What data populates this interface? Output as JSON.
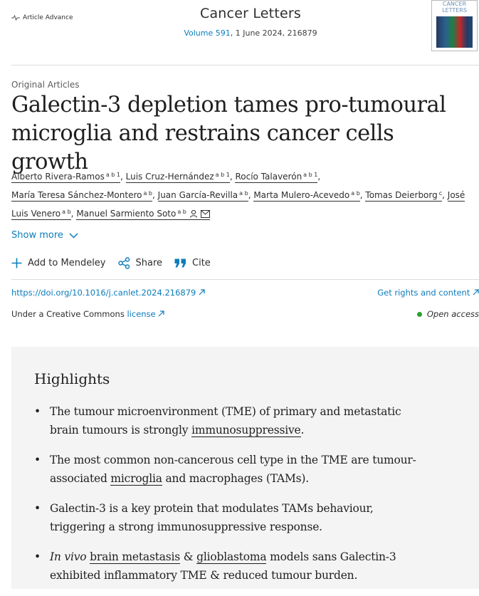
{
  "header": {
    "badge": "Article Advance",
    "journal": "Cancer Letters",
    "volume": "Volume 591",
    "date_id": ", 1 June 2024, 216879",
    "cover_text": "CANCER LETTERS"
  },
  "article": {
    "category": "Original Articles",
    "title": "Galectin-3 depletion tames pro-tumoural microglia and restrains cancer cells growth",
    "authors": [
      {
        "name": "Alberto Rivera-Ramos",
        "sup": "a b 1"
      },
      {
        "name": "Luis Cruz-Hernández",
        "sup": "a b 1"
      },
      {
        "name": "Rocío Talaverón",
        "sup": "a b 1"
      },
      {
        "name": "María Teresa Sánchez-Montero",
        "sup": "a b"
      },
      {
        "name": "Juan García-Revilla",
        "sup": "a b"
      },
      {
        "name": "Marta Mulero-Acevedo",
        "sup": "a b"
      },
      {
        "name": "Tomas Deierborg",
        "sup": "c"
      },
      {
        "name": "José Luis Venero",
        "sup": "a b"
      },
      {
        "name": "Manuel Sarmiento Soto",
        "sup": "a b"
      }
    ],
    "show_more": "Show more"
  },
  "actions": {
    "mendeley": "Add to Mendeley",
    "share": "Share",
    "cite": "Cite"
  },
  "links": {
    "doi": "https://doi.org/10.1016/j.canlet.2024.216879",
    "rights": "Get rights and content",
    "license_prefix": "Under a Creative Commons",
    "license_link": "license",
    "open_access": "Open access"
  },
  "highlights": {
    "heading": "Highlights",
    "items": [
      {
        "a": "The tumour microenvironment (TME) of primary and metastatic brain tumours is strongly ",
        "link": "immunosuppressive",
        "b": "."
      },
      {
        "a": "The most common non-cancerous cell type in the TME are tumour-associated ",
        "link": "microglia",
        "b": " and macrophages (TAMs)."
      },
      {
        "a": "Galectin-3 is a key protein that modulates TAMs behaviour, triggering a strong immunosuppressive response."
      },
      {
        "italic": "In vivo",
        "link": "brain metastasis",
        "amp": " & ",
        "link2": "glioblastoma",
        "b": " models sans Galectin-3 exhibited inflammatory TME & reduced tumour burden."
      }
    ]
  },
  "colors": {
    "link": "#0c7dbb",
    "open_access_dot": "#29a32e",
    "highlights_bg": "#f4f4f4"
  }
}
